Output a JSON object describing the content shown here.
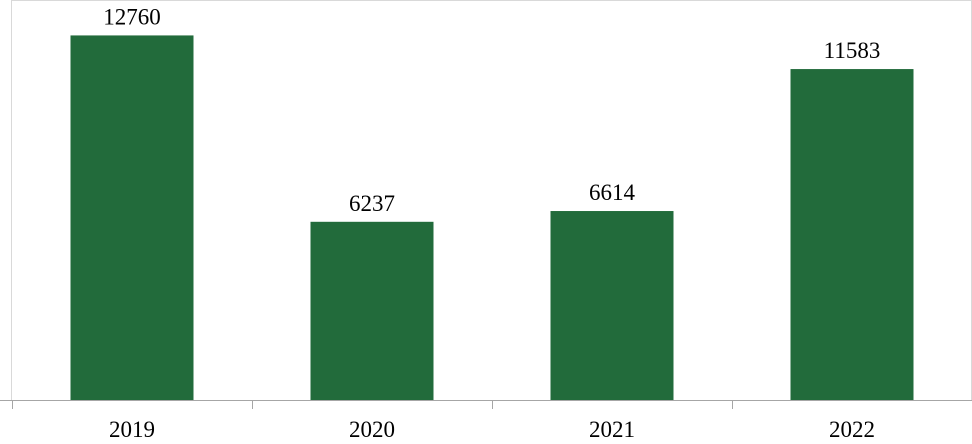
{
  "chart_data": {
    "type": "bar",
    "categories": [
      "2019",
      "2020",
      "2021",
      "2022"
    ],
    "values": [
      12760,
      6237,
      6614,
      11583
    ],
    "value_labels": [
      "12760",
      "6237",
      "6614",
      "11583"
    ],
    "title": "",
    "xlabel": "",
    "ylabel": "",
    "ylim": [
      0,
      14000
    ],
    "grid": false,
    "legend": "none",
    "bar_color": "#226b3b",
    "axis_color": "#a6a6a6",
    "border_color": "#d9d9d9"
  }
}
